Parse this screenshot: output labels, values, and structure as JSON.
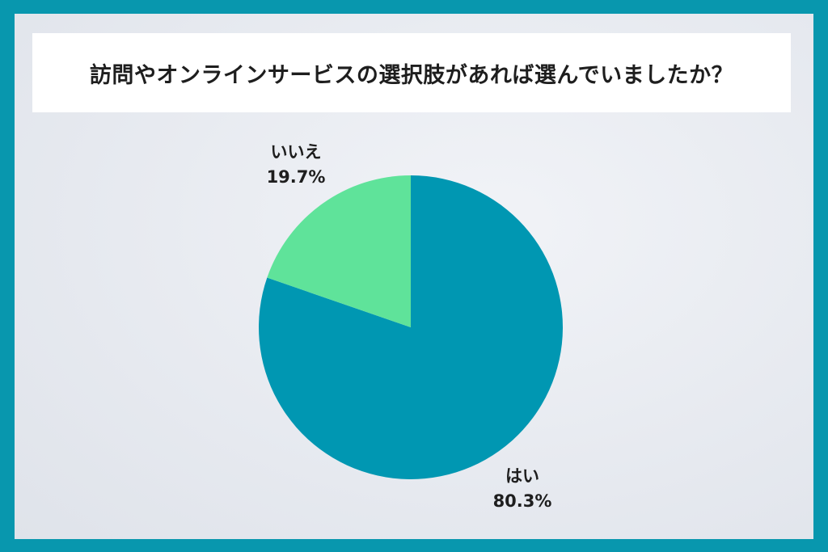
{
  "title": "訪問やオンラインサービスの選択肢があれば選んでいましたか？",
  "colors": {
    "frame": "#0897ae",
    "yes": "#0097b2",
    "no": "#5fe39a"
  },
  "chart_data": {
    "type": "pie",
    "title": "訪問やオンラインサービスの選択肢があれば選んでいましたか？",
    "slices": [
      {
        "label": "はい",
        "value": 80.3,
        "value_label": "80.3%",
        "color": "#0097b2"
      },
      {
        "label": "いいえ",
        "value": 19.7,
        "value_label": "19.7%",
        "color": "#5fe39a"
      }
    ],
    "start_angle": "12 o'clock",
    "direction": "clockwise",
    "legend": "none"
  }
}
